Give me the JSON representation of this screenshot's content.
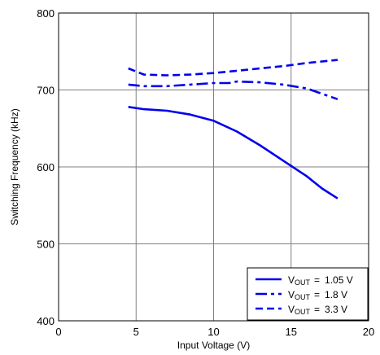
{
  "chart_data": {
    "type": "line",
    "xlabel": "Input Voltage (V)",
    "ylabel": "Switching Frequency (kHz)",
    "xlim": [
      0,
      20
    ],
    "ylim": [
      400,
      800
    ],
    "x_ticks": [
      "0",
      "5",
      "10",
      "15",
      "20"
    ],
    "y_ticks": [
      "400",
      "500",
      "600",
      "700",
      "800"
    ],
    "grid": true,
    "legend_position": "bottom-right",
    "series": [
      {
        "name": "V_OUT = 1.05 V",
        "legend": {
          "v": "V",
          "sub": "OUT",
          "eq": "=",
          "val": "1.05 V"
        },
        "style": "solid",
        "color": "#0000ee",
        "points": [
          [
            4.5,
            678
          ],
          [
            5.5,
            675
          ],
          [
            7,
            673
          ],
          [
            8.5,
            668
          ],
          [
            10,
            660
          ],
          [
            11.5,
            646
          ],
          [
            13,
            628
          ],
          [
            14.5,
            608
          ],
          [
            16,
            588
          ],
          [
            17,
            572
          ],
          [
            18,
            559
          ]
        ]
      },
      {
        "name": "V_OUT = 1.8 V",
        "legend": {
          "v": "V",
          "sub": "OUT",
          "eq": "=",
          "val": "1.8 V"
        },
        "style": "dashdot",
        "color": "#0000ee",
        "points": [
          [
            4.5,
            707
          ],
          [
            5.5,
            705
          ],
          [
            7,
            705
          ],
          [
            8.5,
            707
          ],
          [
            10,
            709
          ],
          [
            11,
            709
          ],
          [
            11.5,
            711
          ],
          [
            13,
            710
          ],
          [
            14.5,
            707
          ],
          [
            16,
            702
          ],
          [
            17,
            695
          ],
          [
            18,
            688
          ]
        ]
      },
      {
        "name": "V_OUT = 3.3 V",
        "legend": {
          "v": "V",
          "sub": "OUT",
          "eq": "=",
          "val": "3.3 V"
        },
        "style": "dashed",
        "color": "#0000ee",
        "points": [
          [
            4.5,
            728
          ],
          [
            5.5,
            720
          ],
          [
            7,
            719
          ],
          [
            8.5,
            720
          ],
          [
            10,
            722
          ],
          [
            11.5,
            725
          ],
          [
            13,
            728
          ],
          [
            14.5,
            731
          ],
          [
            16,
            735
          ],
          [
            18,
            739
          ]
        ]
      }
    ]
  }
}
